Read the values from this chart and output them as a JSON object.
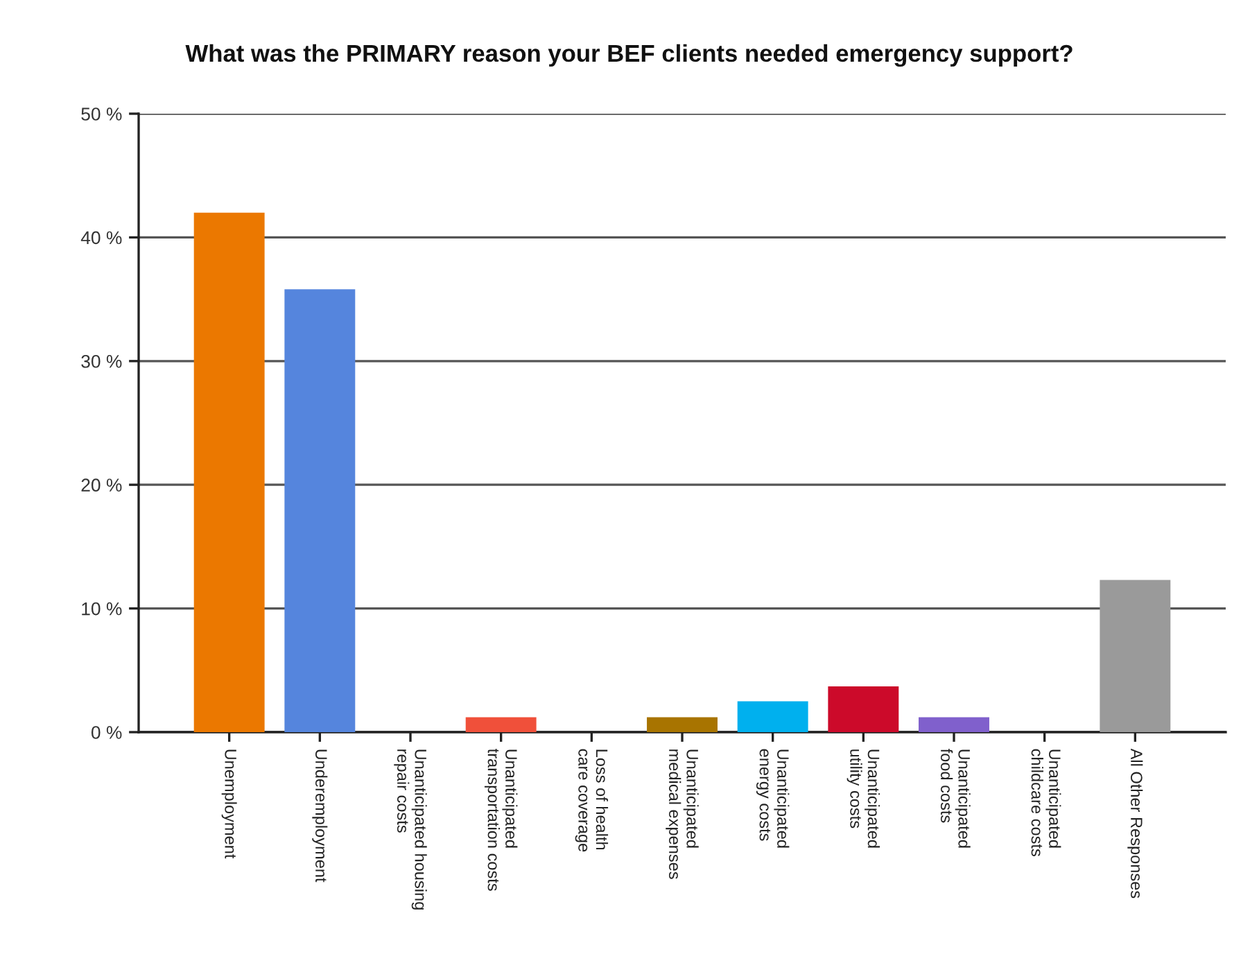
{
  "chart_data": {
    "type": "bar",
    "title": "What was the PRIMARY reason your BEF clients needed emergency support?",
    "categories": [
      "Unemployment",
      "Underemployment",
      "Unanticipated housing\nrepair costs",
      "Unanticipated\ntransportation costs",
      "Loss of health\ncare coverage",
      "Unanticipated\nmedical expenses",
      "Unanticipated\nenergy costs",
      "Unanticipated\nutility costs",
      "Unanticipated\nfood costs",
      "Unanticipated\nchildcare costs",
      "All Other Responses"
    ],
    "values": [
      42.0,
      35.8,
      0,
      1.2,
      0,
      1.2,
      2.5,
      3.7,
      1.2,
      0,
      12.3
    ],
    "colors": [
      "#eb7800",
      "#5585dd",
      null,
      "#f0503a",
      null,
      "#a87400",
      "#00b0ee",
      "#cc0a2a",
      "#8060cc",
      null,
      "#9a9a9a"
    ],
    "ylim": [
      0,
      50
    ],
    "yticks": [
      {
        "value": 0,
        "label": "0 %"
      },
      {
        "value": 10,
        "label": "10 %"
      },
      {
        "value": 20,
        "label": "20 %"
      },
      {
        "value": 30,
        "label": "30 %"
      },
      {
        "value": 40,
        "label": "40 %"
      },
      {
        "value": 50,
        "label": "50 %"
      }
    ],
    "grid": "y"
  }
}
